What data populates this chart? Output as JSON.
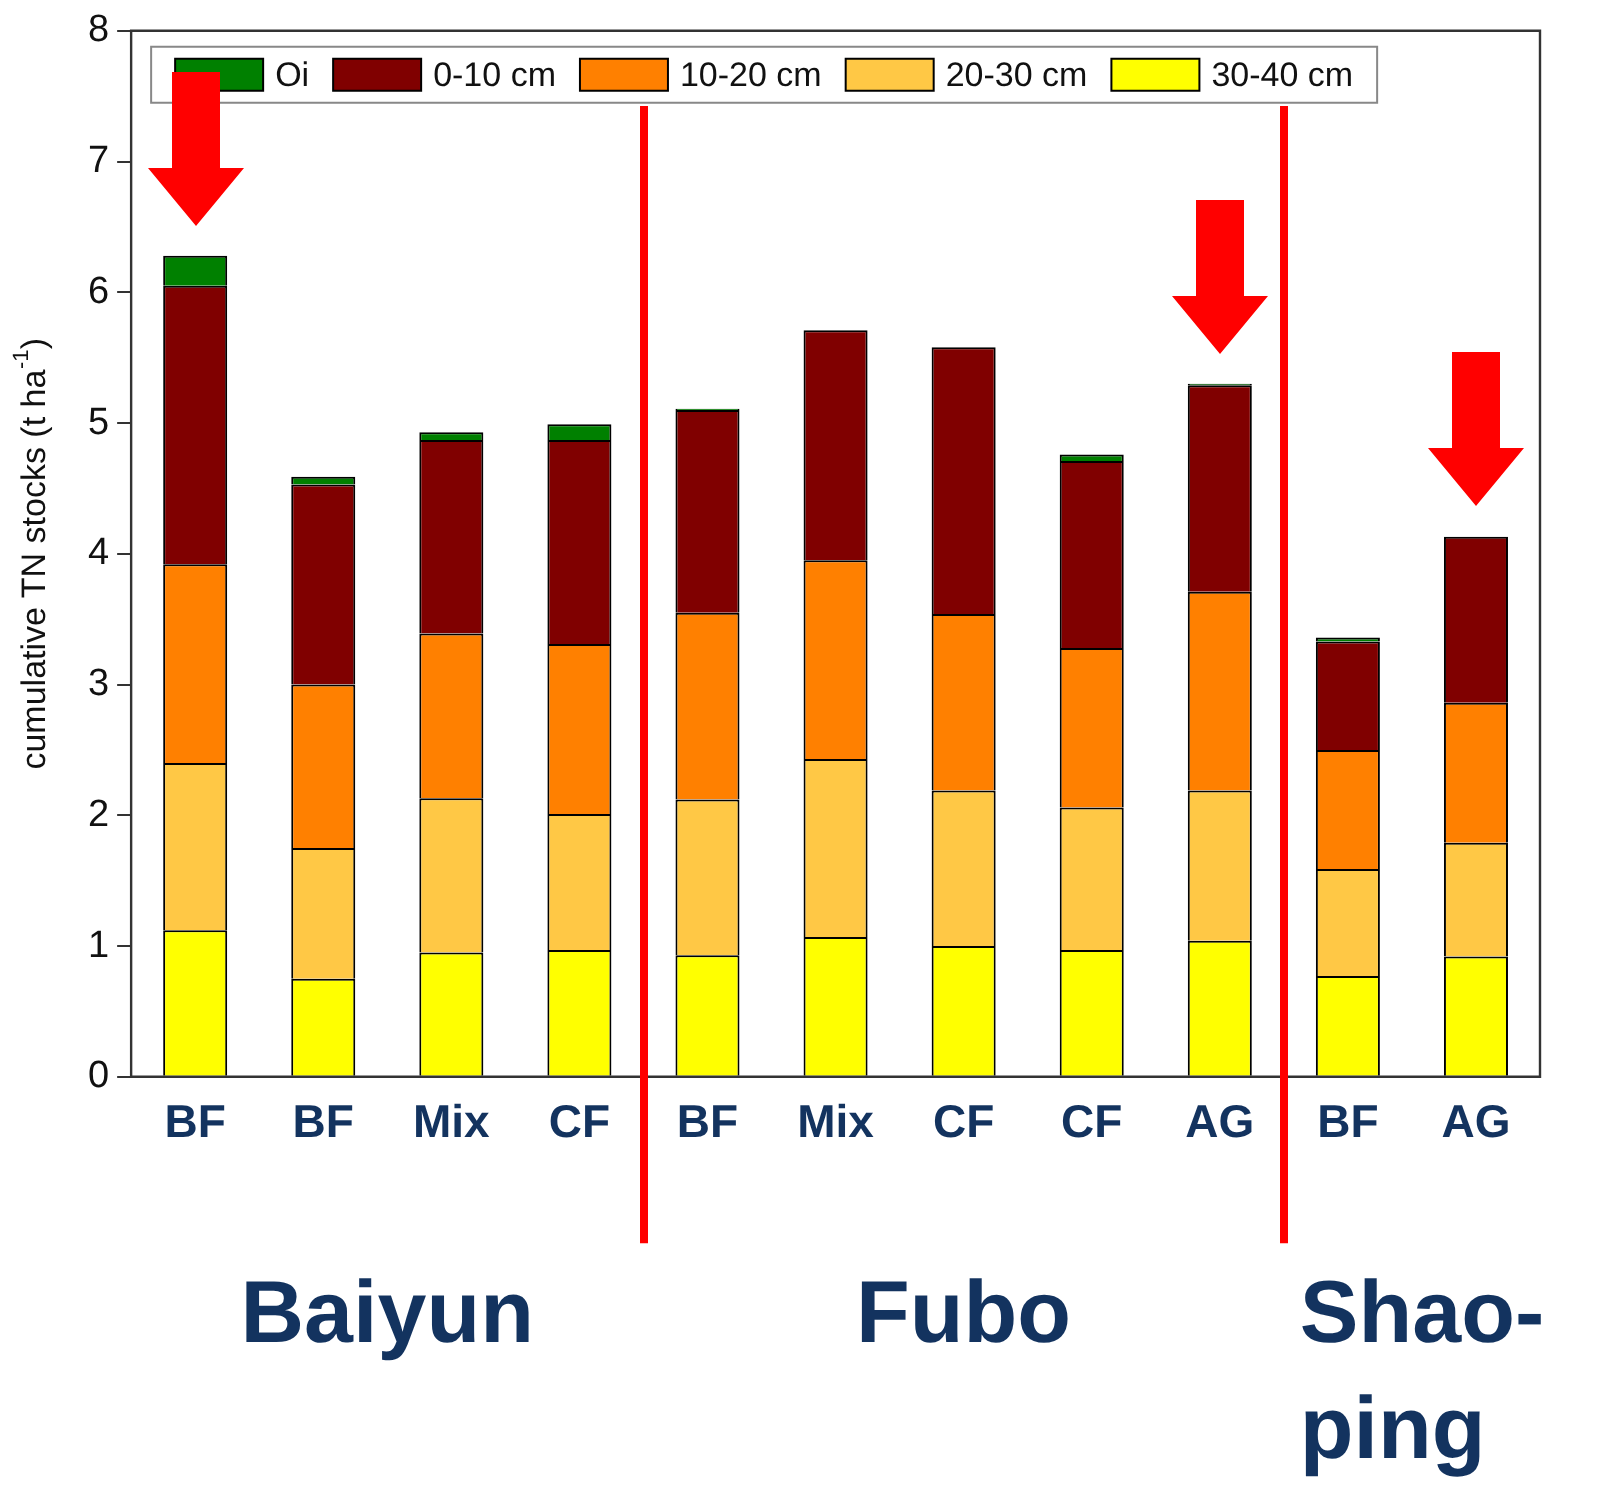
{
  "chart_data": {
    "type": "bar",
    "stacked": true,
    "ylabel": "cumulative TN stocks (t ha$^{-1}$)",
    "categories": [
      "BF",
      "BF",
      "Mix",
      "CF",
      "BF",
      "Mix",
      "CF",
      "CF",
      "AG",
      "BF",
      "AG"
    ],
    "series": [
      {
        "name": "30-40 cm",
        "color": "#ffff00",
        "values": [
          1.12,
          0.75,
          0.95,
          0.97,
          0.93,
          1.07,
          1.0,
          0.97,
          1.04,
          0.77,
          0.92
        ]
      },
      {
        "name": "20-30 cm",
        "color": "#ffc845",
        "values": [
          1.28,
          1.0,
          1.18,
          1.04,
          1.19,
          1.36,
          1.19,
          1.09,
          1.15,
          0.82,
          0.87
        ]
      },
      {
        "name": "10-20 cm",
        "color": "#ff8000",
        "values": [
          1.52,
          1.25,
          1.26,
          1.3,
          1.43,
          1.52,
          1.35,
          1.22,
          1.52,
          0.91,
          1.07
        ]
      },
      {
        "name": "0-10 cm",
        "color": "#800000",
        "values": [
          2.13,
          1.53,
          1.48,
          1.56,
          1.55,
          1.76,
          2.04,
          1.43,
          1.58,
          0.83,
          1.27
        ]
      },
      {
        "name": "Oi",
        "color": "#008000",
        "values": [
          0.23,
          0.06,
          0.06,
          0.12,
          0.01,
          0,
          0,
          0.05,
          0.01,
          0.03,
          0
        ]
      }
    ],
    "ylim": [
      0,
      8
    ],
    "yticks": [
      0,
      1,
      2,
      3,
      4,
      5,
      6,
      7,
      8
    ],
    "grid": false,
    "legend": "top",
    "annotations": [
      "Baiyun",
      "Fubo",
      "Shao-ping"
    ]
  }
}
